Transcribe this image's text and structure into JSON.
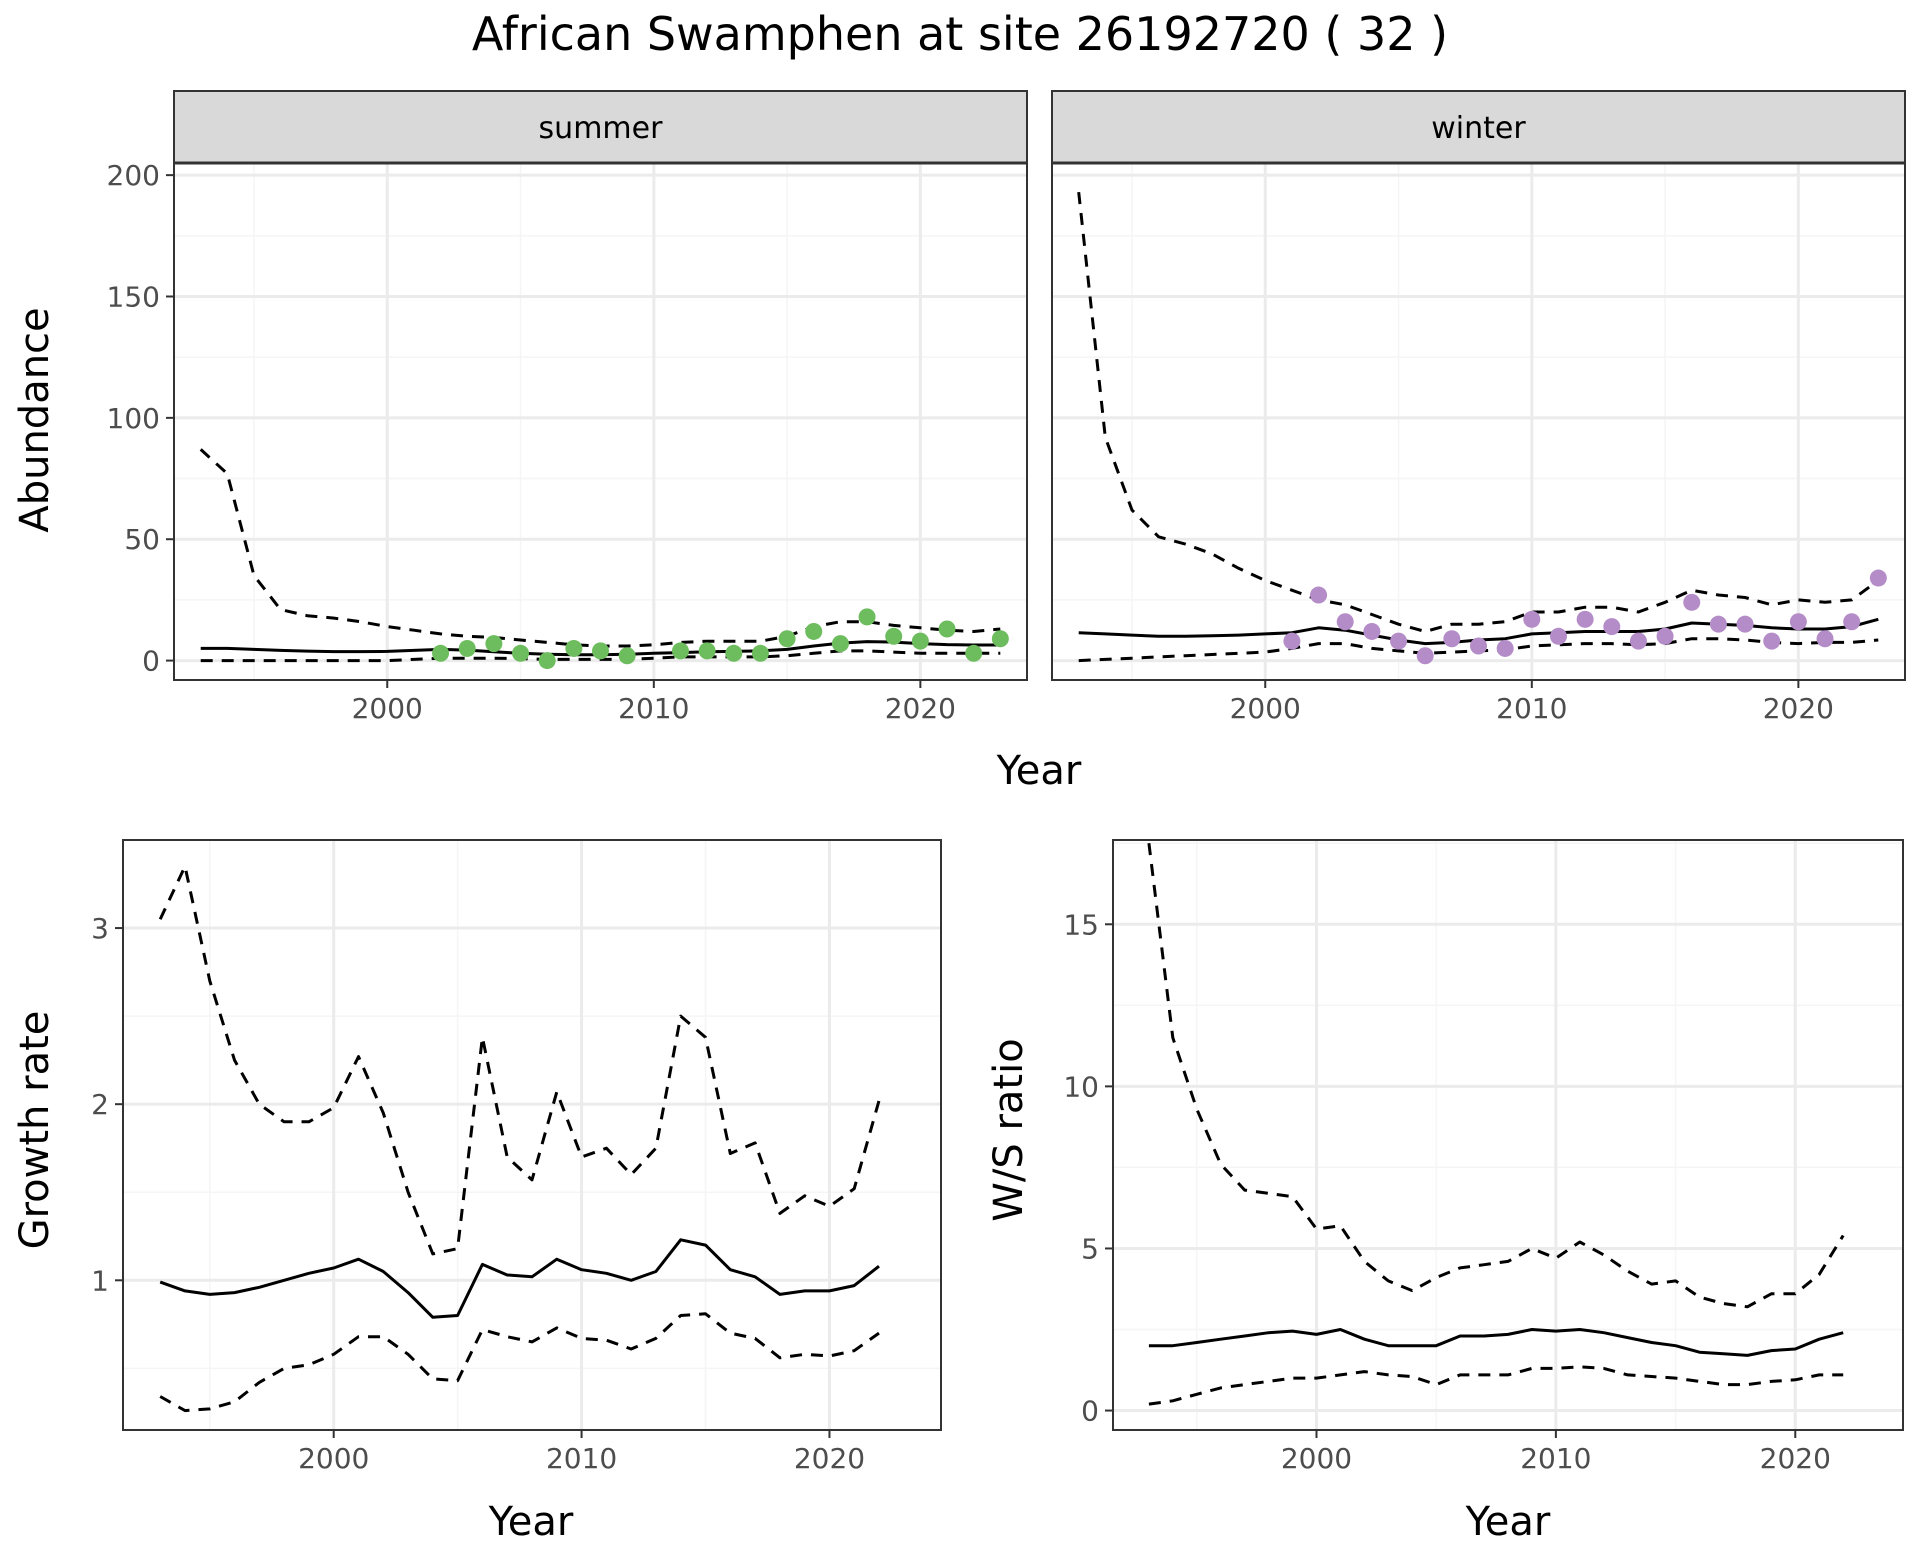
{
  "title": "African Swamphen at site 26192720 ( 32 )",
  "colors": {
    "summer_points": "#6dbd5e",
    "winter_points": "#b48cc8",
    "line": "#000000",
    "panel_border": "#333333",
    "grid_major": "#ebebeb",
    "grid_minor": "#f5f5f5",
    "strip_fill": "#d9d9d9"
  },
  "chart_data": [
    {
      "type": "line",
      "title": "",
      "facet_label": "summer",
      "xlabel": "Year",
      "ylabel": "Abundance",
      "xlim": [
        1992,
        2024
      ],
      "ylim": [
        -8,
        205
      ],
      "x_ticks": [
        2000,
        2010,
        2020
      ],
      "y_ticks": [
        0,
        50,
        100,
        150,
        200
      ],
      "grid": true,
      "x": [
        1993,
        1994,
        1995,
        1996,
        1997,
        1998,
        1999,
        2000,
        2001,
        2002,
        2003,
        2004,
        2005,
        2006,
        2007,
        2008,
        2009,
        2010,
        2011,
        2012,
        2013,
        2014,
        2015,
        2016,
        2017,
        2018,
        2019,
        2020,
        2021,
        2022,
        2023
      ],
      "series": [
        {
          "role": "estimate",
          "style": "solid",
          "values": [
            5,
            5,
            4.6,
            4.2,
            3.9,
            3.7,
            3.7,
            3.8,
            4.2,
            4.6,
            4.3,
            3.6,
            3,
            2.6,
            2.4,
            2.4,
            2.6,
            3,
            3.3,
            3.6,
            3.8,
            4,
            4.6,
            6,
            7.2,
            7.8,
            7.6,
            7,
            6.6,
            6.4,
            6.4
          ]
        },
        {
          "role": "upper",
          "style": "dashed",
          "values": [
            87,
            77,
            35,
            21,
            18.5,
            17.5,
            16,
            14,
            12.5,
            11,
            10,
            9.5,
            8.5,
            7.5,
            6.5,
            6,
            6,
            6.5,
            7.5,
            8,
            8,
            8,
            10,
            14,
            16,
            16,
            14.5,
            13.5,
            12.5,
            12,
            13
          ]
        },
        {
          "role": "lower",
          "style": "dashed",
          "values": [
            0,
            0,
            0,
            0,
            0,
            0,
            0,
            0,
            0.5,
            1,
            1,
            1,
            0.8,
            0.5,
            0.5,
            0.5,
            0.5,
            1,
            1.5,
            1.5,
            1.5,
            1.5,
            2,
            3,
            4,
            4,
            3.5,
            3,
            3,
            3,
            3
          ]
        },
        {
          "role": "observed",
          "style": "points",
          "x": [
            2002,
            2003,
            2004,
            2005,
            2006,
            2007,
            2008,
            2009,
            2011,
            2012,
            2013,
            2014,
            2015,
            2016,
            2017,
            2018,
            2019,
            2020,
            2021,
            2022,
            2023
          ],
          "values": [
            3,
            5,
            7,
            3,
            0,
            5,
            4,
            2,
            4,
            4,
            3,
            3,
            9,
            12,
            7,
            18,
            10,
            8,
            13,
            3,
            9
          ]
        }
      ]
    },
    {
      "type": "line",
      "title": "",
      "facet_label": "winter",
      "xlabel": "Year",
      "ylabel": "Abundance",
      "xlim": [
        1992,
        2024
      ],
      "ylim": [
        -8,
        205
      ],
      "x_ticks": [
        2000,
        2010,
        2020
      ],
      "y_ticks": [
        0,
        50,
        100,
        150,
        200
      ],
      "grid": true,
      "x": [
        1993,
        1994,
        1995,
        1996,
        1997,
        1998,
        1999,
        2000,
        2001,
        2002,
        2003,
        2004,
        2005,
        2006,
        2007,
        2008,
        2009,
        2010,
        2011,
        2012,
        2013,
        2014,
        2015,
        2016,
        2017,
        2018,
        2019,
        2020,
        2021,
        2022,
        2023
      ],
      "series": [
        {
          "role": "estimate",
          "style": "solid",
          "values": [
            11.5,
            11,
            10.5,
            10,
            10,
            10.2,
            10.5,
            11,
            11.5,
            13.5,
            12.5,
            10.5,
            8.5,
            7,
            7.5,
            8.5,
            9,
            11,
            11.5,
            12,
            12,
            12,
            13,
            15.5,
            15,
            14.5,
            13.5,
            13,
            13,
            14,
            17
          ]
        },
        {
          "role": "upper",
          "style": "dashed",
          "values": [
            193,
            92,
            62,
            51,
            48,
            44,
            38,
            33,
            29,
            25,
            23,
            19,
            15,
            12,
            15,
            15,
            16,
            20,
            20,
            22,
            22,
            20,
            24,
            29,
            27,
            26,
            23,
            25,
            24,
            25,
            33
          ]
        },
        {
          "role": "lower",
          "style": "dashed",
          "values": [
            0,
            0.5,
            1,
            1.5,
            2,
            2.5,
            3,
            3.5,
            5,
            7,
            7,
            5,
            4,
            3,
            3.5,
            4,
            4.5,
            6,
            6.5,
            7,
            7,
            6.5,
            7,
            9,
            9,
            8.5,
            7.5,
            7,
            7.5,
            7.5,
            8.5
          ]
        },
        {
          "role": "observed",
          "style": "points",
          "x": [
            2001,
            2002,
            2003,
            2004,
            2005,
            2006,
            2007,
            2008,
            2009,
            2010,
            2011,
            2012,
            2013,
            2014,
            2015,
            2016,
            2017,
            2018,
            2019,
            2020,
            2021,
            2022,
            2023
          ],
          "values": [
            8,
            27,
            16,
            12,
            8,
            2,
            9,
            6,
            5,
            17,
            10,
            17,
            14,
            8,
            10,
            24,
            15,
            15,
            8,
            16,
            9,
            16,
            34
          ]
        }
      ]
    },
    {
      "type": "line",
      "title": "",
      "xlabel": "Year",
      "ylabel": "Growth rate",
      "xlim": [
        1991.5,
        2024.5
      ],
      "ylim": [
        0.15,
        3.5
      ],
      "x_ticks": [
        2000,
        2010,
        2020
      ],
      "y_ticks": [
        1,
        2,
        3
      ],
      "grid": true,
      "x": [
        1993,
        1994,
        1995,
        1996,
        1997,
        1998,
        1999,
        2000,
        2001,
        2002,
        2003,
        2004,
        2005,
        2006,
        2007,
        2008,
        2009,
        2010,
        2011,
        2012,
        2013,
        2014,
        2015,
        2016,
        2017,
        2018,
        2019,
        2020,
        2021,
        2022
      ],
      "series": [
        {
          "role": "estimate",
          "style": "solid",
          "values": [
            0.99,
            0.94,
            0.92,
            0.93,
            0.96,
            1,
            1.04,
            1.07,
            1.12,
            1.05,
            0.93,
            0.79,
            0.8,
            1.09,
            1.03,
            1.02,
            1.12,
            1.06,
            1.04,
            1,
            1.05,
            1.23,
            1.2,
            1.06,
            1.02,
            0.92,
            0.94,
            0.94,
            0.97,
            1.08
          ]
        },
        {
          "role": "upper",
          "style": "dashed",
          "values": [
            3.05,
            3.35,
            2.7,
            2.25,
            2,
            1.9,
            1.9,
            1.98,
            2.27,
            1.95,
            1.5,
            1.15,
            1.18,
            2.38,
            1.7,
            1.57,
            2.07,
            1.7,
            1.75,
            1.6,
            1.75,
            2.5,
            2.38,
            1.72,
            1.78,
            1.38,
            1.48,
            1.42,
            1.52,
            2.02
          ]
        },
        {
          "role": "lower",
          "style": "dashed",
          "values": [
            0.34,
            0.26,
            0.27,
            0.31,
            0.42,
            0.5,
            0.52,
            0.58,
            0.68,
            0.68,
            0.58,
            0.44,
            0.43,
            0.72,
            0.68,
            0.65,
            0.73,
            0.67,
            0.66,
            0.61,
            0.67,
            0.8,
            0.81,
            0.7,
            0.67,
            0.56,
            0.58,
            0.57,
            0.6,
            0.7
          ]
        }
      ]
    },
    {
      "type": "line",
      "title": "",
      "xlabel": "Year",
      "ylabel": "W/S ratio",
      "xlim": [
        1991.5,
        2024.5
      ],
      "ylim": [
        -0.6,
        17.6
      ],
      "x_ticks": [
        2000,
        2010,
        2020
      ],
      "y_ticks": [
        0,
        5,
        10,
        15
      ],
      "grid": true,
      "x": [
        1993,
        1994,
        1995,
        1996,
        1997,
        1998,
        1999,
        2000,
        2001,
        2002,
        2003,
        2004,
        2005,
        2006,
        2007,
        2008,
        2009,
        2010,
        2011,
        2012,
        2013,
        2014,
        2015,
        2016,
        2017,
        2018,
        2019,
        2020,
        2021,
        2022
      ],
      "series": [
        {
          "role": "estimate",
          "style": "solid",
          "values": [
            2,
            2,
            2.1,
            2.2,
            2.3,
            2.4,
            2.45,
            2.35,
            2.5,
            2.2,
            2,
            2,
            2,
            2.3,
            2.3,
            2.35,
            2.5,
            2.45,
            2.5,
            2.4,
            2.25,
            2.1,
            2,
            1.8,
            1.75,
            1.7,
            1.85,
            1.9,
            2.2,
            2.4
          ]
        },
        {
          "role": "upper",
          "style": "dashed",
          "values": [
            17.5,
            11.5,
            9.3,
            7.6,
            6.8,
            6.7,
            6.6,
            5.6,
            5.7,
            4.6,
            4,
            3.7,
            4.1,
            4.4,
            4.5,
            4.6,
            5,
            4.7,
            5.2,
            4.8,
            4.3,
            3.9,
            4,
            3.5,
            3.3,
            3.2,
            3.6,
            3.6,
            4.2,
            5.4
          ]
        },
        {
          "role": "lower",
          "style": "dashed",
          "values": [
            0.2,
            0.3,
            0.5,
            0.7,
            0.8,
            0.9,
            1,
            1,
            1.1,
            1.2,
            1.1,
            1.05,
            0.8,
            1.1,
            1.1,
            1.1,
            1.3,
            1.3,
            1.35,
            1.3,
            1.1,
            1.05,
            1,
            0.9,
            0.8,
            0.8,
            0.9,
            0.95,
            1.1,
            1.1
          ]
        }
      ]
    }
  ]
}
